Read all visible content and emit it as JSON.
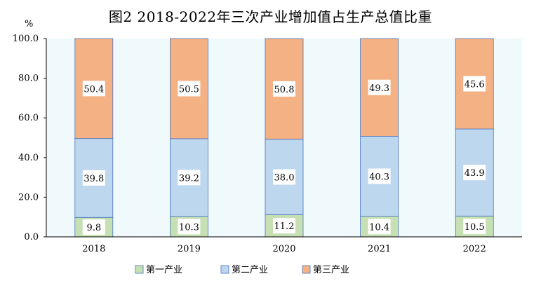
{
  "chart_data": {
    "type": "bar",
    "stacked": true,
    "title": "图2  2018-2022年三次产业增加值占生产总值比重",
    "y_unit": "%",
    "categories": [
      "2018",
      "2019",
      "2020",
      "2021",
      "2022"
    ],
    "series": [
      {
        "name": "第一产业",
        "values": [
          9.8,
          10.3,
          11.2,
          10.4,
          10.5
        ],
        "color": "#c6e0b4"
      },
      {
        "name": "第二产业",
        "values": [
          39.8,
          39.2,
          38.0,
          40.3,
          43.9
        ],
        "color": "#bdd7ee"
      },
      {
        "name": "第三产业",
        "values": [
          50.4,
          50.5,
          50.8,
          49.3,
          45.6
        ],
        "color": "#f4b183"
      }
    ],
    "ylim": [
      0,
      100
    ],
    "yticks": [
      "0.0",
      "20.0",
      "40.0",
      "60.0",
      "80.0",
      "100.0"
    ],
    "plot_background": "#f0f9fb",
    "grid": false,
    "legend_position": "bottom"
  }
}
